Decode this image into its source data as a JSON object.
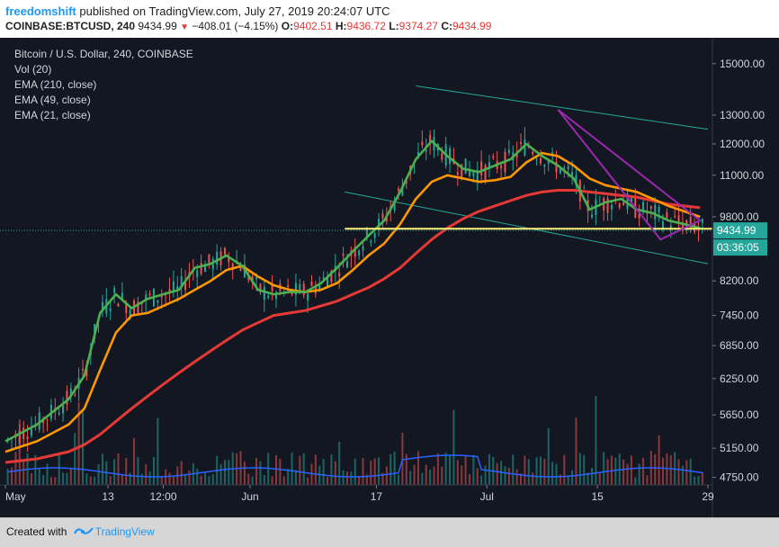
{
  "header": {
    "author": "freedomshift",
    "published": "published on TradingView.com, July 27, 2019 20:24:07 UTC",
    "symbol": "COINBASE:BTCUSD, 240",
    "last": "9434.99",
    "change": "−408.01 (−4.15%)",
    "o_label": "O:",
    "o_value": "9402.51",
    "h_label": "H:",
    "h_value": "9436.72",
    "l_label": "L:",
    "l_value": "9374.27",
    "c_label": "C:",
    "c_value": "9434.99"
  },
  "legend": {
    "title": "Bitcoin / U.S. Dollar, 240, COINBASE",
    "vol": "Vol (20)",
    "ema210": "EMA (210, close)",
    "ema49": "EMA (49, close)",
    "ema21": "EMA (21, close)"
  },
  "price_tag": "9434.99",
  "countdown": "03:36:05",
  "footer": {
    "created_with": "Created with",
    "brand": "TradingView"
  },
  "colors": {
    "background": "#131722",
    "up": "#26a69a",
    "down": "#ef5350",
    "ema21": "#4caf50",
    "ema49": "#ff9800",
    "ema210": "#e53935",
    "volume_ma": "#2962ff",
    "channel": "#26a69a",
    "triangle": "#9c27b0",
    "support": "#fff176"
  },
  "chart_data": {
    "type": "candlestick",
    "title": "Bitcoin / U.S. Dollar, 240, COINBASE",
    "y_ticks": [
      15000,
      13000,
      12000,
      11000,
      9800,
      8200,
      7450,
      6850,
      6250,
      5650,
      5150,
      4750
    ],
    "y_tick_labels": [
      "15000.00",
      "13000.00",
      "12000.00",
      "11000.00",
      "9800.00",
      "8200.00",
      "7450.00",
      "6850.00",
      "6250.00",
      "5650.00",
      "5150.00",
      "4750.00"
    ],
    "y_scale": "log",
    "ylim": [
      4650,
      15800
    ],
    "x_ticks": [
      "May",
      "13",
      "12:00",
      "Jun",
      "17",
      "Jul",
      "15",
      "29"
    ],
    "x_tick_days": [
      0,
      13,
      20,
      31,
      47,
      61,
      75,
      89
    ],
    "x_range_days": [
      0,
      89
    ],
    "last_price": 9434.99,
    "series": [
      {
        "name": "EMA (21, close)",
        "x": [
          0,
          4,
          8,
          10,
          12,
          14,
          16,
          18,
          20,
          22,
          24,
          26,
          28,
          30,
          32,
          34,
          36,
          38,
          40,
          42,
          44,
          46,
          48,
          50,
          52,
          54,
          56,
          58,
          60,
          62,
          64,
          66,
          68,
          70,
          72,
          74,
          76,
          78,
          80,
          82,
          84,
          86,
          88
        ],
        "y": [
          5250,
          5500,
          5900,
          6300,
          7500,
          7900,
          7600,
          7800,
          7900,
          8000,
          8500,
          8600,
          8800,
          8550,
          8000,
          7900,
          7950,
          7950,
          8150,
          8500,
          8900,
          9300,
          9700,
          10500,
          11500,
          12100,
          11600,
          11200,
          11100,
          11300,
          11500,
          12000,
          11600,
          11300,
          10900,
          10000,
          10200,
          10300,
          10000,
          9900,
          9700,
          9600,
          9500
        ]
      },
      {
        "name": "EMA (49, close)",
        "x": [
          0,
          4,
          8,
          10,
          12,
          14,
          16,
          18,
          20,
          22,
          24,
          26,
          28,
          30,
          32,
          34,
          36,
          38,
          40,
          42,
          44,
          46,
          48,
          50,
          52,
          54,
          56,
          58,
          60,
          62,
          64,
          66,
          68,
          70,
          72,
          74,
          76,
          78,
          80,
          82,
          84,
          86,
          88
        ],
        "y": [
          5100,
          5250,
          5500,
          5750,
          6400,
          7100,
          7450,
          7500,
          7650,
          7800,
          8000,
          8200,
          8450,
          8550,
          8300,
          8100,
          8000,
          7950,
          8000,
          8150,
          8450,
          8800,
          9100,
          9600,
          10300,
          10800,
          11000,
          10900,
          10800,
          10850,
          10950,
          11400,
          11700,
          11600,
          11300,
          10900,
          10700,
          10600,
          10500,
          10300,
          10100,
          9950,
          9800
        ]
      },
      {
        "name": "EMA (210, close)",
        "x": [
          0,
          4,
          8,
          10,
          12,
          14,
          16,
          18,
          20,
          22,
          24,
          26,
          28,
          30,
          32,
          34,
          36,
          38,
          40,
          42,
          44,
          46,
          48,
          50,
          52,
          54,
          56,
          58,
          60,
          62,
          64,
          66,
          68,
          70,
          72,
          74,
          76,
          78,
          80,
          82,
          84,
          86,
          88
        ],
        "y": [
          4950,
          5000,
          5100,
          5200,
          5350,
          5550,
          5750,
          5950,
          6150,
          6350,
          6550,
          6750,
          6950,
          7150,
          7300,
          7450,
          7500,
          7550,
          7650,
          7750,
          7900,
          8050,
          8250,
          8500,
          8850,
          9200,
          9500,
          9750,
          9950,
          10100,
          10250,
          10400,
          10500,
          10550,
          10550,
          10500,
          10450,
          10400,
          10350,
          10250,
          10150,
          10100,
          10050
        ]
      }
    ],
    "annotations": [
      {
        "type": "horizontal_line",
        "y": 9480,
        "x_start_day": 43,
        "color": "support"
      },
      {
        "type": "triangle",
        "points": [
          [
            70,
            13200
          ],
          [
            88,
            9700
          ],
          [
            83,
            9200
          ]
        ]
      }
    ],
    "grid": false,
    "legend_placement": "top-left"
  }
}
